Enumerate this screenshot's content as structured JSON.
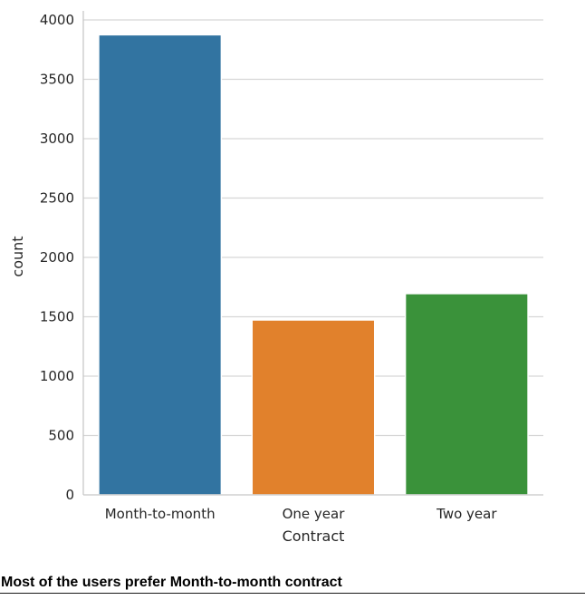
{
  "chart_data": {
    "type": "bar",
    "title": "",
    "xlabel": "Contract",
    "ylabel": "count",
    "categories": [
      "Month-to-month",
      "One year",
      "Two year"
    ],
    "values": [
      3875,
      1473,
      1695
    ],
    "colors": [
      "#3274a1",
      "#e1812c",
      "#3a923a"
    ],
    "ylim": [
      0,
      4000
    ],
    "yticks": [
      0,
      500,
      1000,
      1500,
      2000,
      2500,
      3000,
      3500,
      4000
    ],
    "grid": true
  },
  "caption": "Most of the users prefer Month-to-month contract"
}
